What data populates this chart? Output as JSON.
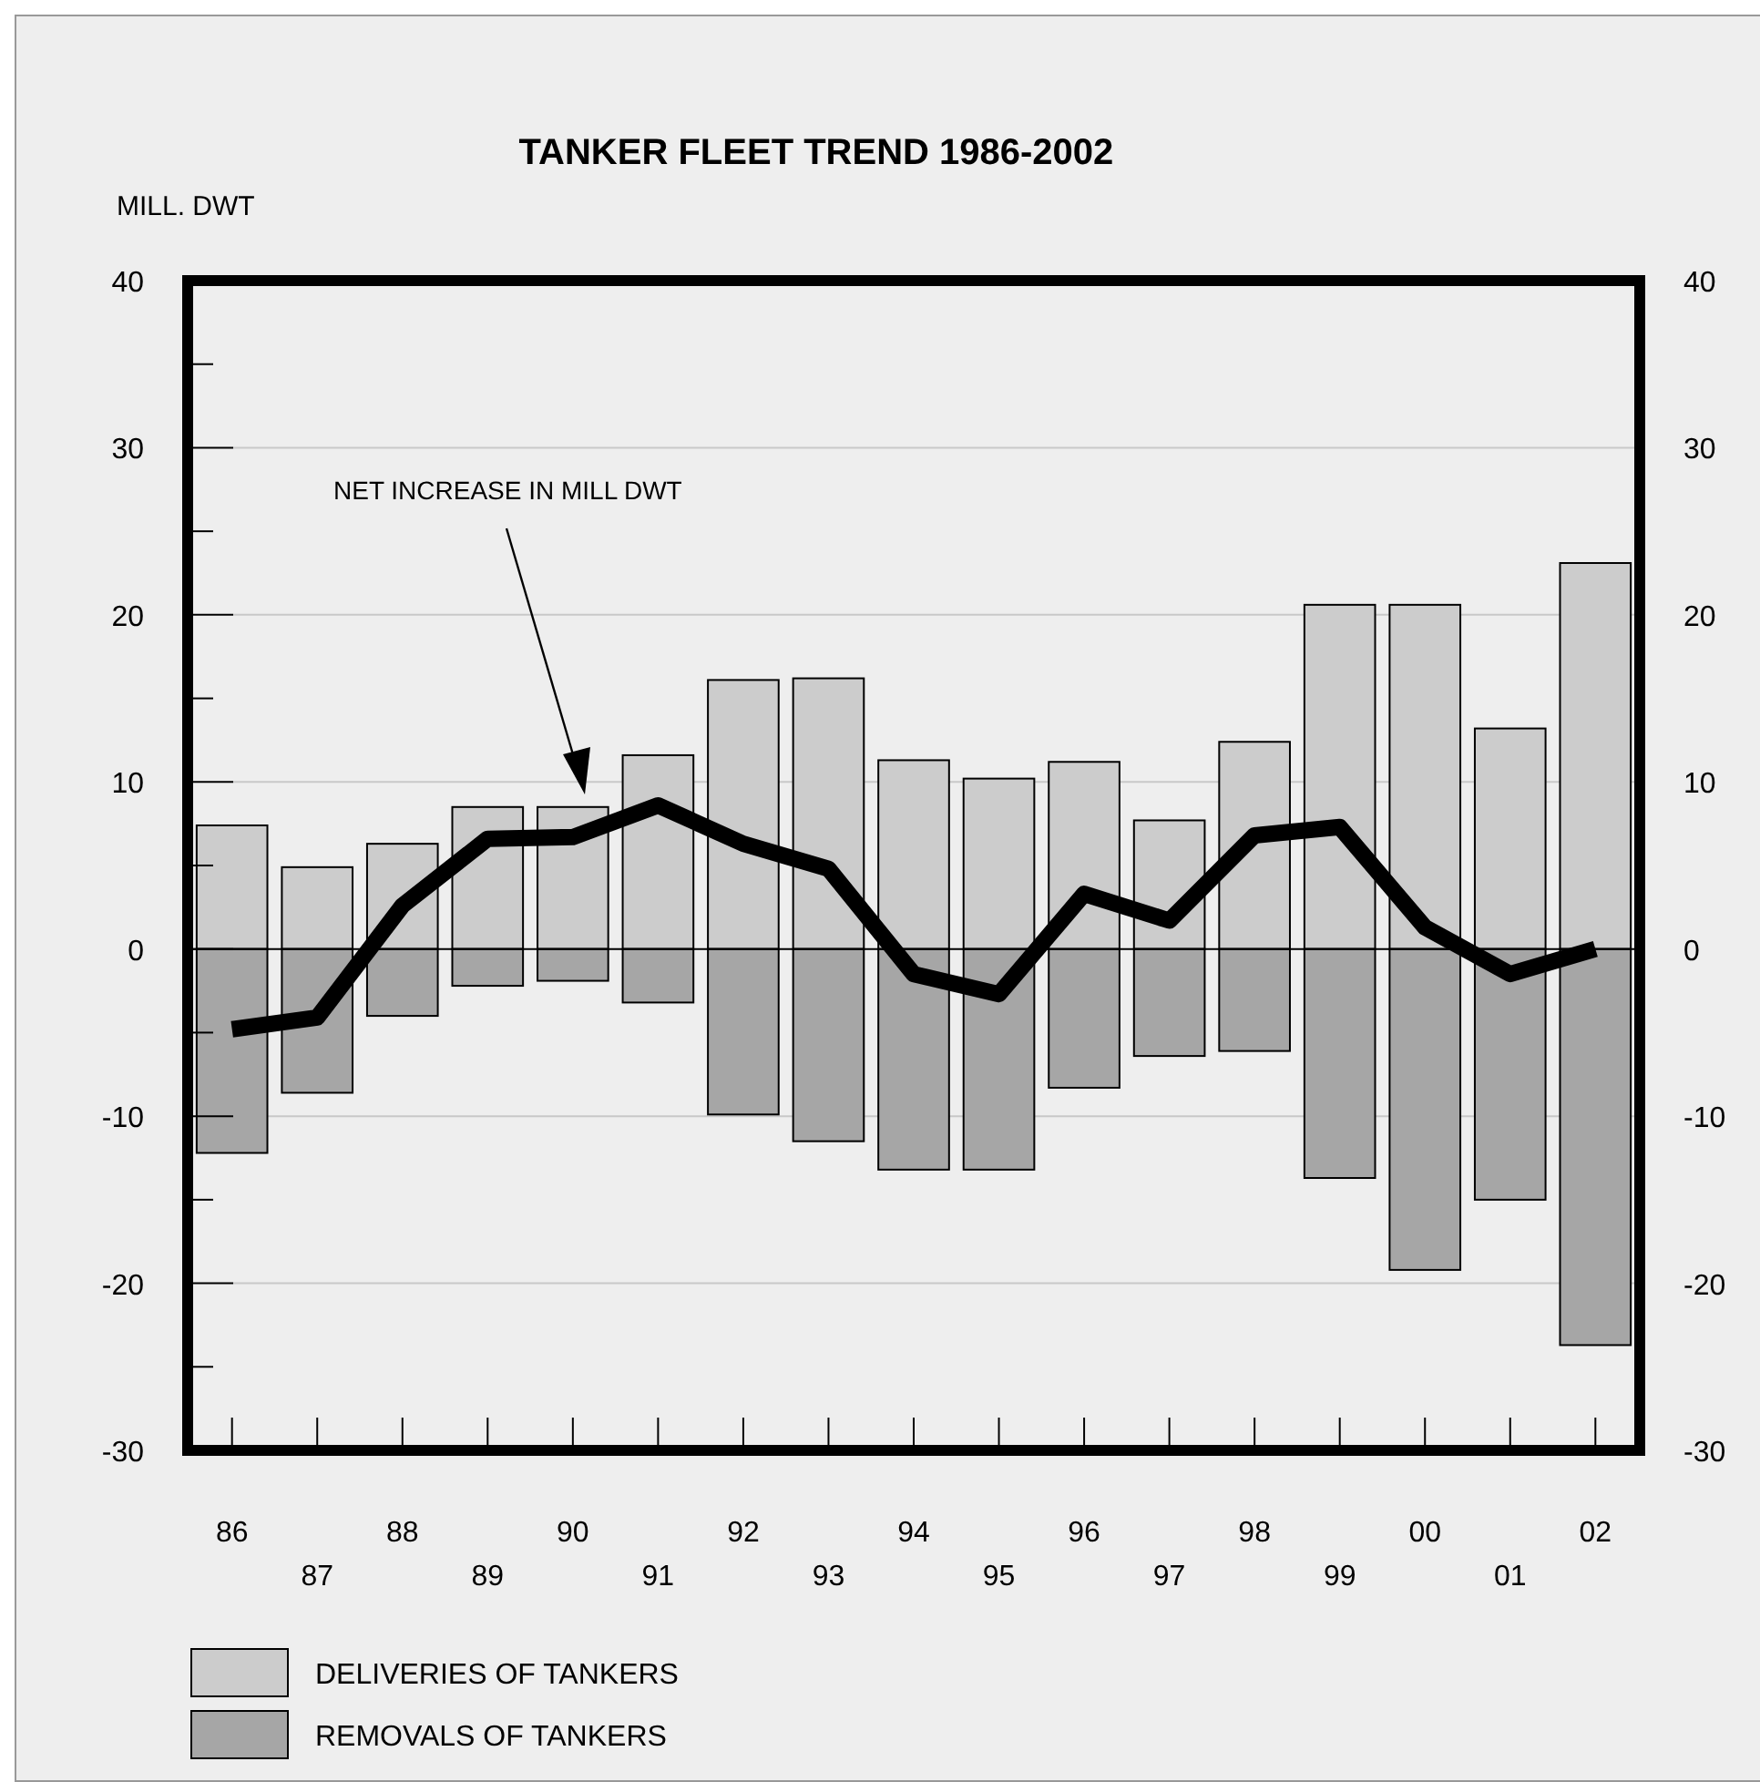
{
  "chart_data": {
    "type": "bar",
    "title": "TANKER FLEET TREND 1986-2002",
    "ylabel": "MILL. DWT",
    "categories": [
      "86",
      "87",
      "88",
      "89",
      "90",
      "91",
      "92",
      "93",
      "94",
      "95",
      "96",
      "97",
      "98",
      "99",
      "00",
      "01",
      "02"
    ],
    "stacked": true,
    "series": [
      {
        "name": "DELIVERIES OF TANKERS",
        "color": "#cccccc",
        "values": [
          7.4,
          4.9,
          6.3,
          8.5,
          8.5,
          11.6,
          16.1,
          16.2,
          11.3,
          10.2,
          11.2,
          7.7,
          12.4,
          20.6,
          20.6,
          13.2,
          23.1
        ]
      },
      {
        "name": "REMOVALS OF TANKERS",
        "color": "#a6a6a6",
        "values": [
          -12.2,
          -8.6,
          -4.0,
          -2.2,
          -1.9,
          -3.2,
          -9.9,
          -11.5,
          -13.2,
          -13.2,
          -8.3,
          -6.4,
          -6.1,
          -13.7,
          -19.2,
          -15.0,
          -23.7
        ]
      },
      {
        "type": "line",
        "color": "#000000",
        "values": [
          -4.8,
          -4.1,
          2.6,
          6.6,
          6.7,
          8.6,
          6.3,
          4.8,
          -1.5,
          -2.7,
          3.3,
          1.7,
          6.8,
          7.3,
          1.3,
          -1.5,
          0.0
        ]
      }
    ],
    "annotations": [
      "NET INCREASE IN MILL DWT"
    ],
    "ylim": [
      -30,
      40
    ],
    "yticks": [
      -30,
      {
        "value": -25,
        "label": null
      },
      -20,
      {
        "value": -15,
        "label": null
      },
      -10,
      {
        "value": -5,
        "label": null
      },
      0,
      {
        "value": 5,
        "label": null
      },
      10,
      {
        "value": 15,
        "label": null
      },
      20,
      {
        "value": 25,
        "label": null
      },
      30,
      {
        "value": 35,
        "label": null
      },
      40
    ],
    "y2lim": [
      -30,
      40
    ],
    "y2ticks": [
      -30,
      -20,
      -10,
      0,
      10,
      20,
      30,
      40
    ],
    "grid": "y",
    "legend": "bottom",
    "line_style": "solid",
    "marker": "none"
  }
}
